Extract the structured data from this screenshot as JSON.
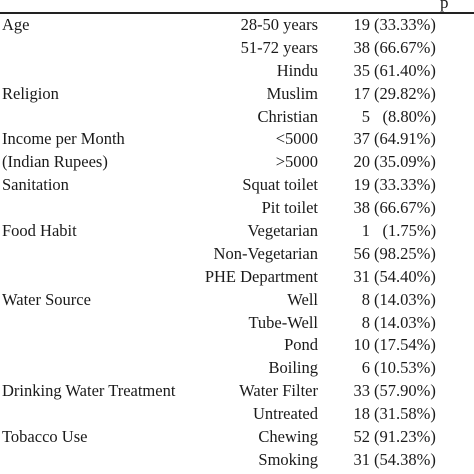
{
  "header": {
    "partial_text": "p"
  },
  "table": {
    "rows": [
      {
        "variable": "Age",
        "category": "28-50 years",
        "n": "19",
        "pct": "(33.33%)"
      },
      {
        "variable": "",
        "category": "51-72 years",
        "n": "38",
        "pct": "(66.67%)"
      },
      {
        "variable": "",
        "category": "Hindu",
        "n": "35",
        "pct": "(61.40%)"
      },
      {
        "variable": "Religion",
        "category": "Muslim",
        "n": "17",
        "pct": "(29.82%)"
      },
      {
        "variable": "",
        "category": "Christian",
        "n": "5",
        "pct": "(8.80%)"
      },
      {
        "variable": "Income per Month",
        "category": "<5000",
        "n": "37",
        "pct": "(64.91%)"
      },
      {
        "variable": "(Indian Rupees)",
        "category": ">5000",
        "n": "20",
        "pct": "(35.09%)"
      },
      {
        "variable": "Sanitation",
        "category": "Squat toilet",
        "n": "19",
        "pct": "(33.33%)"
      },
      {
        "variable": "",
        "category": "Pit toilet",
        "n": "38",
        "pct": "(66.67%)"
      },
      {
        "variable": "Food Habit",
        "category": "Vegetarian",
        "n": "1",
        "pct": "(1.75%)"
      },
      {
        "variable": "",
        "category": "Non-Vegetarian",
        "n": "56",
        "pct": "(98.25%)"
      },
      {
        "variable": "",
        "category": "PHE Department",
        "n": "31",
        "pct": "(54.40%)"
      },
      {
        "variable": "Water Source",
        "category": "Well",
        "n": "8",
        "pct": "(14.03%)"
      },
      {
        "variable": "",
        "category": "Tube-Well",
        "n": "8",
        "pct": "(14.03%)"
      },
      {
        "variable": "",
        "category": "Pond",
        "n": "10",
        "pct": "(17.54%)"
      },
      {
        "variable": "",
        "category": "Boiling",
        "n": "6",
        "pct": "(10.53%)"
      },
      {
        "variable": "Drinking Water Treatment",
        "category": "Water Filter",
        "n": "33",
        "pct": "(57.90%)"
      },
      {
        "variable": "",
        "category": "Untreated",
        "n": "18",
        "pct": "(31.58%)"
      },
      {
        "variable": "Tobacco Use",
        "category": "Chewing",
        "n": "52",
        "pct": "(91.23%)"
      },
      {
        "variable": "",
        "category": "Smoking",
        "n": "31",
        "pct": "(54.38%)"
      }
    ]
  }
}
